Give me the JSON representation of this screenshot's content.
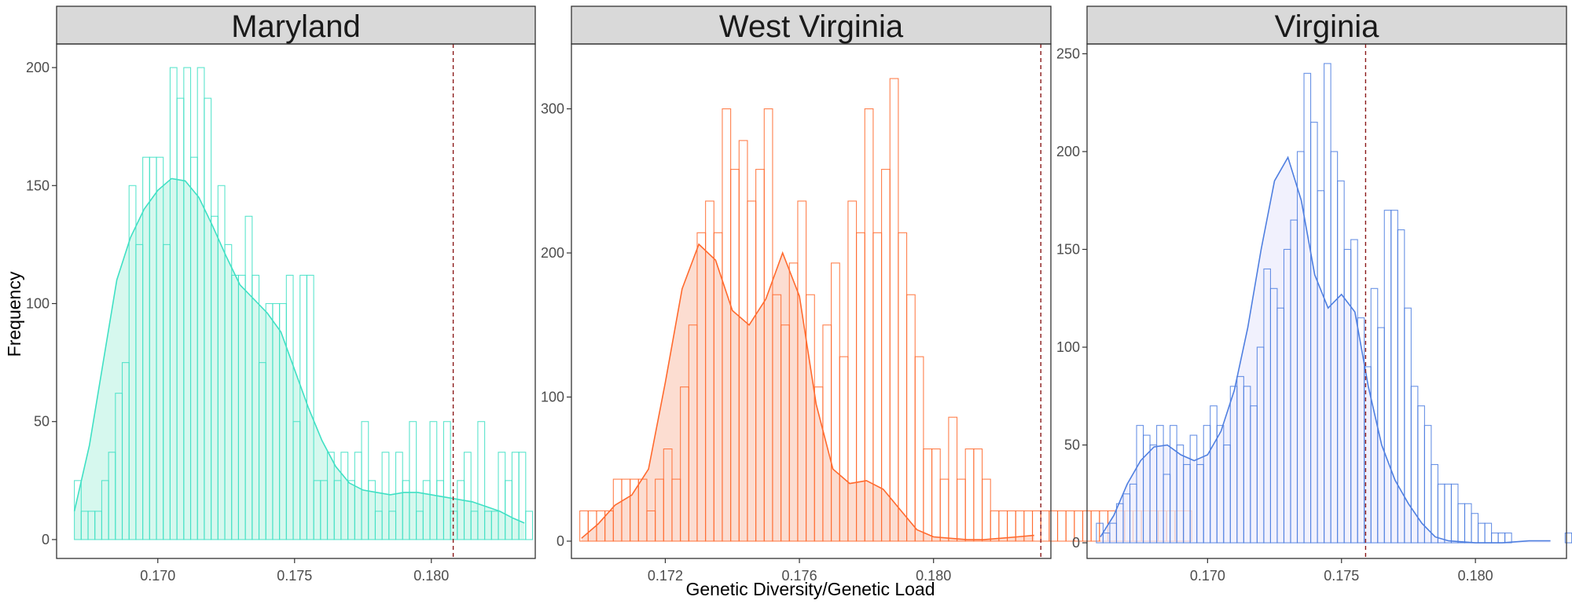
{
  "xlabel": "Genetic Diversity/Genetic Load",
  "ylabel": "Frequency",
  "colors": {
    "strip_fill": "#d9d9d9",
    "panel_border": "#333333",
    "reference_line": "#8b1a1a"
  },
  "chart_data": [
    {
      "type": "histogram",
      "title": "Maryland",
      "color": "#40e0c4",
      "fill": "#c8f5e8",
      "bin_width": 0.00025,
      "bin_start": 0.16695,
      "counts": [
        25,
        12,
        12,
        12,
        25,
        37,
        62,
        75,
        150,
        125,
        162,
        162,
        162,
        125,
        200,
        187,
        200,
        162,
        200,
        187,
        137,
        150,
        125,
        112,
        112,
        137,
        112,
        75,
        100,
        100,
        100,
        112,
        50,
        112,
        112,
        25,
        25,
        37,
        25,
        37,
        25,
        37,
        50,
        25,
        12,
        37,
        12,
        37,
        25,
        50,
        12,
        25,
        50,
        25,
        50,
        12,
        25,
        37,
        12,
        50,
        12,
        12,
        37,
        25,
        37,
        37,
        12
      ],
      "density": [
        [
          0.16695,
          12
        ],
        [
          0.1675,
          40
        ],
        [
          0.168,
          75
        ],
        [
          0.1685,
          110
        ],
        [
          0.169,
          128
        ],
        [
          0.1695,
          140
        ],
        [
          0.17,
          148
        ],
        [
          0.1705,
          153
        ],
        [
          0.171,
          152
        ],
        [
          0.1715,
          145
        ],
        [
          0.172,
          133
        ],
        [
          0.1725,
          120
        ],
        [
          0.173,
          108
        ],
        [
          0.1735,
          102
        ],
        [
          0.174,
          96
        ],
        [
          0.1745,
          88
        ],
        [
          0.175,
          72
        ],
        [
          0.1755,
          56
        ],
        [
          0.176,
          42
        ],
        [
          0.1765,
          31
        ],
        [
          0.177,
          24
        ],
        [
          0.1775,
          21
        ],
        [
          0.178,
          20
        ],
        [
          0.1785,
          19
        ],
        [
          0.179,
          20
        ],
        [
          0.1795,
          20
        ],
        [
          0.18,
          19
        ],
        [
          0.1805,
          18
        ],
        [
          0.181,
          17
        ],
        [
          0.1815,
          16
        ],
        [
          0.182,
          14
        ],
        [
          0.1825,
          12
        ],
        [
          0.183,
          9
        ],
        [
          0.1834,
          7
        ]
      ],
      "xlim": [
        0.1663,
        0.1838
      ],
      "ylim": [
        -8,
        210
      ],
      "xticks": [
        0.17,
        0.175,
        0.18
      ],
      "xtick_labels": [
        "0.170",
        "0.175",
        "0.180"
      ],
      "yticks": [
        0,
        50,
        100,
        150,
        200
      ],
      "ytick_labels": [
        "0",
        "50",
        "100",
        "150",
        "200"
      ],
      "reference_x": 0.1808
    },
    {
      "type": "histogram",
      "title": "West Virginia",
      "color": "#ff6a2e",
      "fill": "#fbd2c2",
      "bin_width": 0.00025,
      "bin_start": 0.16945,
      "counts": [
        21,
        21,
        21,
        21,
        43,
        43,
        43,
        43,
        21,
        43,
        64,
        43,
        107,
        150,
        214,
        236,
        214,
        300,
        258,
        278,
        236,
        258,
        300,
        171,
        150,
        193,
        236,
        171,
        107,
        150,
        193,
        128,
        236,
        214,
        300,
        214,
        258,
        321,
        214,
        171,
        128,
        64,
        64,
        43,
        86,
        43,
        64,
        64,
        43,
        21,
        21,
        21,
        21,
        21,
        21,
        21,
        21,
        21,
        21,
        21,
        21,
        21,
        21,
        21,
        21,
        21,
        21,
        21,
        21,
        21,
        21,
        21,
        21
      ],
      "density": [
        [
          0.1695,
          2
        ],
        [
          0.17,
          12
        ],
        [
          0.1705,
          25
        ],
        [
          0.171,
          32
        ],
        [
          0.1715,
          50
        ],
        [
          0.172,
          110
        ],
        [
          0.1725,
          175
        ],
        [
          0.173,
          206
        ],
        [
          0.1735,
          195
        ],
        [
          0.174,
          160
        ],
        [
          0.1745,
          150
        ],
        [
          0.175,
          168
        ],
        [
          0.1755,
          200
        ],
        [
          0.176,
          170
        ],
        [
          0.1765,
          95
        ],
        [
          0.177,
          50
        ],
        [
          0.1775,
          40
        ],
        [
          0.178,
          42
        ],
        [
          0.1785,
          36
        ],
        [
          0.179,
          22
        ],
        [
          0.1795,
          8
        ],
        [
          0.18,
          3
        ],
        [
          0.1805,
          2
        ],
        [
          0.181,
          1
        ],
        [
          0.1815,
          1
        ],
        [
          0.182,
          2
        ],
        [
          0.1825,
          3
        ],
        [
          0.183,
          4
        ]
      ],
      "xlim": [
        0.1692,
        0.1835
      ],
      "ylim": [
        -12,
        345
      ],
      "xticks": [
        0.172,
        0.176,
        0.18
      ],
      "xtick_labels": [
        "0.172",
        "0.176",
        "0.180"
      ],
      "yticks": [
        0,
        100,
        200,
        300
      ],
      "ytick_labels": [
        "0",
        "100",
        "200",
        "300"
      ],
      "reference_x": 0.1832
    },
    {
      "type": "histogram",
      "title": "Virginia",
      "color": "#4f7fe0",
      "fill": "#ececfc",
      "bin_width": 0.00025,
      "bin_start": 0.16585,
      "counts": [
        10,
        5,
        10,
        20,
        25,
        30,
        60,
        55,
        50,
        60,
        35,
        60,
        50,
        40,
        55,
        40,
        60,
        70,
        60,
        50,
        80,
        85,
        80,
        70,
        100,
        140,
        130,
        120,
        150,
        165,
        200,
        240,
        215,
        180,
        245,
        200,
        185,
        150,
        155,
        115,
        90,
        130,
        110,
        170,
        170,
        160,
        120,
        80,
        70,
        60,
        40,
        30,
        30,
        30,
        20,
        20,
        15,
        10,
        10,
        5,
        5,
        5,
        0,
        0,
        0,
        0,
        0,
        0,
        0,
        0,
        5,
        5
      ],
      "density": [
        [
          0.166,
          3
        ],
        [
          0.1665,
          14
        ],
        [
          0.167,
          30
        ],
        [
          0.1675,
          42
        ],
        [
          0.168,
          49
        ],
        [
          0.1685,
          50
        ],
        [
          0.169,
          45
        ],
        [
          0.1695,
          42
        ],
        [
          0.17,
          45
        ],
        [
          0.1705,
          57
        ],
        [
          0.171,
          78
        ],
        [
          0.1715,
          110
        ],
        [
          0.172,
          150
        ],
        [
          0.1725,
          185
        ],
        [
          0.173,
          197
        ],
        [
          0.1735,
          175
        ],
        [
          0.174,
          137
        ],
        [
          0.1745,
          120
        ],
        [
          0.175,
          127
        ],
        [
          0.1755,
          118
        ],
        [
          0.176,
          80
        ],
        [
          0.1765,
          50
        ],
        [
          0.177,
          32
        ],
        [
          0.1775,
          20
        ],
        [
          0.178,
          10
        ],
        [
          0.1785,
          3
        ],
        [
          0.179,
          1
        ],
        [
          0.18,
          0
        ],
        [
          0.181,
          0
        ],
        [
          0.182,
          1
        ],
        [
          0.1828,
          1
        ]
      ],
      "xlim": [
        0.1655,
        0.1834
      ],
      "ylim": [
        -8,
        255
      ],
      "xticks": [
        0.17,
        0.175,
        0.18
      ],
      "xtick_labels": [
        "0.170",
        "0.175",
        "0.180"
      ],
      "yticks": [
        0,
        50,
        100,
        150,
        200,
        250
      ],
      "ytick_labels": [
        "0",
        "50",
        "100",
        "150",
        "200",
        "250"
      ],
      "reference_x": 0.1759
    }
  ]
}
